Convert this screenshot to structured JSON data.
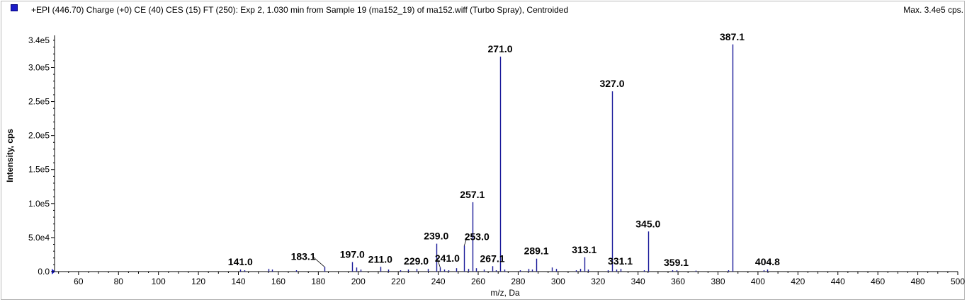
{
  "header": {
    "title": "+EPI (446.70) Charge (+0) CE (40) CES (15) FT (250): Exp 2, 1.030 min from Sample 19 (ma152_19) of ma152.wiff (Turbo Spray), Centroided",
    "max_label": "Max. 3.4e5 cps."
  },
  "colors": {
    "peak": "#1a1a9a",
    "axis": "#000000",
    "marker": "#1c1cc8"
  },
  "chart_data": {
    "type": "bar",
    "xlabel": "m/z, Da",
    "ylabel": "Intensity, cps",
    "xlim": [
      48,
      500
    ],
    "ylim": [
      0,
      340000
    ],
    "x_ticks": [
      60,
      80,
      100,
      120,
      140,
      160,
      180,
      200,
      220,
      240,
      260,
      280,
      300,
      320,
      340,
      360,
      380,
      400,
      420,
      440,
      460,
      480,
      500
    ],
    "y_ticks": [
      {
        "value": 0,
        "label": "0.0"
      },
      {
        "value": 50000,
        "label": "5.0e4"
      },
      {
        "value": 100000,
        "label": "1.0e5"
      },
      {
        "value": 150000,
        "label": "1.5e5"
      },
      {
        "value": 200000,
        "label": "2.0e5"
      },
      {
        "value": 250000,
        "label": "2.5e5"
      },
      {
        "value": 300000,
        "label": "3.0e5"
      },
      {
        "value": 340000,
        "label": "3.4e5"
      }
    ],
    "labeled_peaks": [
      {
        "mz": 141.0,
        "intensity": 3000,
        "label": "141.0"
      },
      {
        "mz": 183.1,
        "intensity": 7000,
        "label": "183.1"
      },
      {
        "mz": 197.0,
        "intensity": 14000,
        "label": "197.0"
      },
      {
        "mz": 211.0,
        "intensity": 7000,
        "label": "211.0"
      },
      {
        "mz": 229.0,
        "intensity": 4000,
        "label": "229.0"
      },
      {
        "mz": 239.0,
        "intensity": 41000,
        "label": "239.0"
      },
      {
        "mz": 241.0,
        "intensity": 6000,
        "label": "241.0"
      },
      {
        "mz": 253.0,
        "intensity": 38000,
        "label": "253.0"
      },
      {
        "mz": 257.1,
        "intensity": 102000,
        "label": "257.1"
      },
      {
        "mz": 267.1,
        "intensity": 8000,
        "label": "267.1"
      },
      {
        "mz": 271.0,
        "intensity": 316000,
        "label": "271.0"
      },
      {
        "mz": 289.1,
        "intensity": 19000,
        "label": "289.1"
      },
      {
        "mz": 313.1,
        "intensity": 21000,
        "label": "313.1"
      },
      {
        "mz": 327.0,
        "intensity": 265000,
        "label": "327.0"
      },
      {
        "mz": 331.1,
        "intensity": 4000,
        "label": "331.1"
      },
      {
        "mz": 345.0,
        "intensity": 59000,
        "label": "345.0"
      },
      {
        "mz": 359.1,
        "intensity": 2000,
        "label": "359.1"
      },
      {
        "mz": 387.1,
        "intensity": 334000,
        "label": "387.1"
      },
      {
        "mz": 404.8,
        "intensity": 3000,
        "label": "404.8"
      }
    ],
    "minor_peaks": [
      {
        "mz": 143.0,
        "intensity": 2000
      },
      {
        "mz": 155.0,
        "intensity": 4000
      },
      {
        "mz": 157.0,
        "intensity": 3000
      },
      {
        "mz": 169.0,
        "intensity": 2000
      },
      {
        "mz": 199.0,
        "intensity": 6000
      },
      {
        "mz": 201.0,
        "intensity": 3000
      },
      {
        "mz": 215.0,
        "intensity": 3000
      },
      {
        "mz": 221.0,
        "intensity": 2000
      },
      {
        "mz": 225.0,
        "intensity": 3000
      },
      {
        "mz": 235.0,
        "intensity": 4000
      },
      {
        "mz": 243.0,
        "intensity": 3000
      },
      {
        "mz": 245.0,
        "intensity": 2000
      },
      {
        "mz": 249.0,
        "intensity": 5000
      },
      {
        "mz": 255.0,
        "intensity": 4000
      },
      {
        "mz": 259.0,
        "intensity": 5000
      },
      {
        "mz": 263.0,
        "intensity": 3000
      },
      {
        "mz": 269.0,
        "intensity": 2000
      },
      {
        "mz": 273.0,
        "intensity": 3000
      },
      {
        "mz": 281.0,
        "intensity": 2000
      },
      {
        "mz": 285.0,
        "intensity": 4000
      },
      {
        "mz": 287.0,
        "intensity": 3000
      },
      {
        "mz": 297.0,
        "intensity": 6000
      },
      {
        "mz": 299.0,
        "intensity": 4000
      },
      {
        "mz": 309.0,
        "intensity": 2000
      },
      {
        "mz": 311.0,
        "intensity": 4000
      },
      {
        "mz": 315.0,
        "intensity": 3000
      },
      {
        "mz": 325.0,
        "intensity": 2000
      },
      {
        "mz": 329.0,
        "intensity": 3000
      },
      {
        "mz": 343.0,
        "intensity": 2000
      },
      {
        "mz": 357.0,
        "intensity": 2000
      },
      {
        "mz": 369.0,
        "intensity": 1500
      },
      {
        "mz": 385.0,
        "intensity": 2000
      },
      {
        "mz": 403.0,
        "intensity": 2000
      }
    ]
  }
}
